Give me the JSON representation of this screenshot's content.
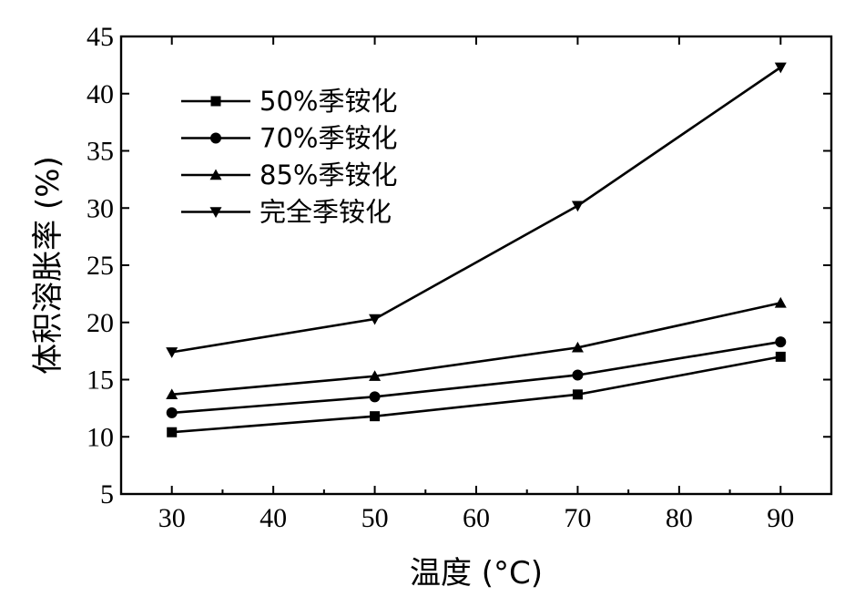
{
  "chart_data": {
    "type": "line",
    "title": "",
    "xlabel": "温度 (°C)",
    "ylabel": "体积溶胀率 (%)",
    "xlim": [
      25,
      95
    ],
    "ylim": [
      5,
      45
    ],
    "xticks": [
      30,
      40,
      50,
      60,
      70,
      80,
      90
    ],
    "yticks": [
      5,
      10,
      15,
      20,
      25,
      30,
      35,
      40,
      45
    ],
    "x": [
      30,
      50,
      70,
      90
    ],
    "legend_position": "top-left",
    "grid": false,
    "series": [
      {
        "name": "50%季铵化",
        "marker": "square",
        "values": [
          10.4,
          11.8,
          13.7,
          17.0
        ]
      },
      {
        "name": "70%季铵化",
        "marker": "circle",
        "values": [
          12.1,
          13.5,
          15.4,
          18.3
        ]
      },
      {
        "name": "85%季铵化",
        "marker": "triangle-up",
        "values": [
          13.7,
          15.3,
          17.8,
          21.7
        ]
      },
      {
        "name": "完全季铵化",
        "marker": "triangle-down",
        "values": [
          17.4,
          20.3,
          30.2,
          42.3
        ]
      }
    ]
  }
}
